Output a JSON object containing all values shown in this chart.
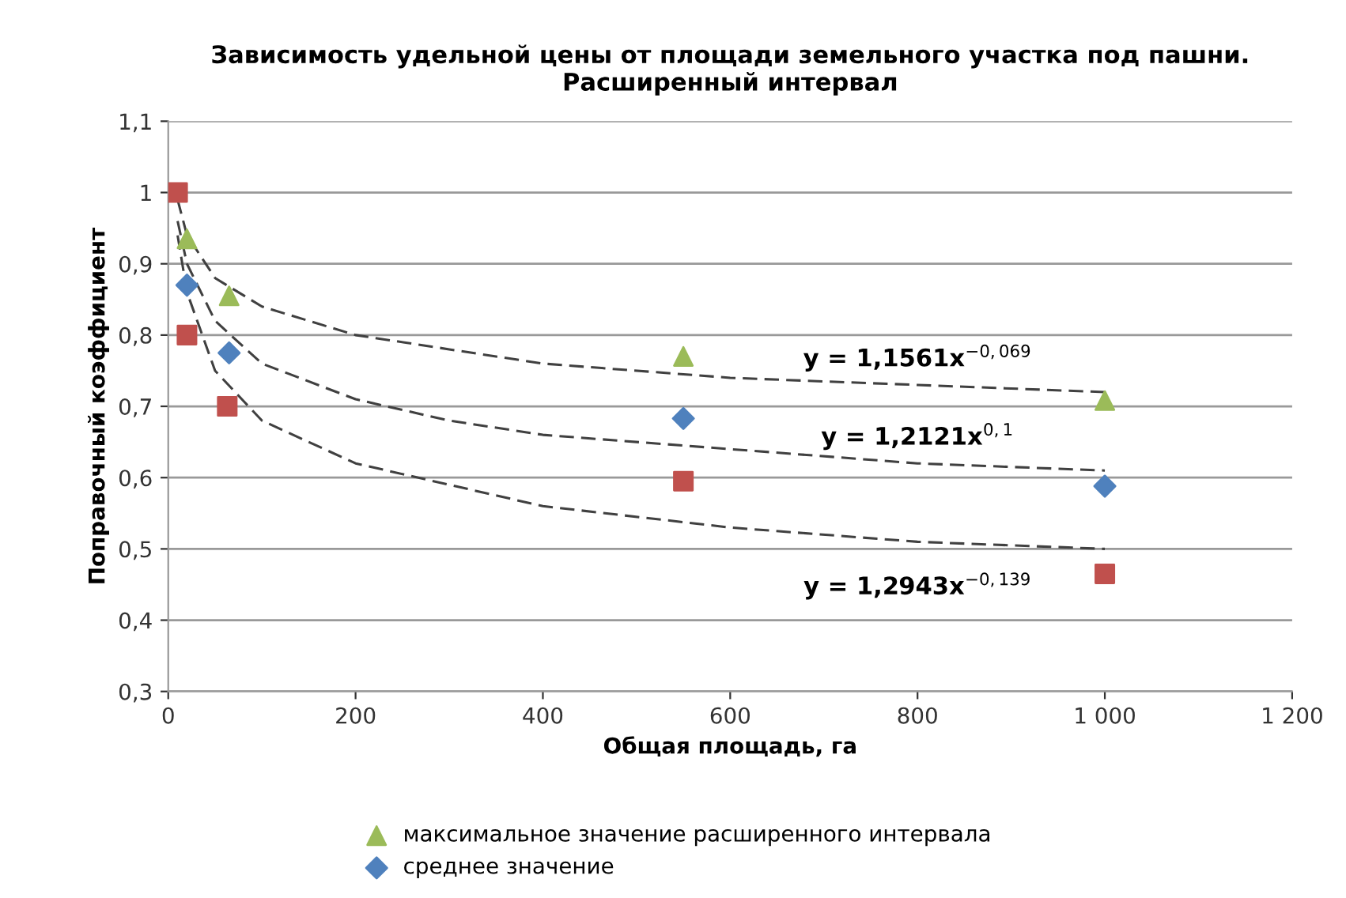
{
  "chart_data": {
    "type": "scatter",
    "title": "Зависимость удельной цены от площади земельного участка под пашни.\nРасширенный интервал",
    "xlabel": "Общая площадь, га",
    "ylabel": "Поправочный коэффициент",
    "xlim": [
      0,
      1200
    ],
    "xticks": [
      0,
      200,
      400,
      600,
      800,
      {
        "value": 1000,
        "label": "1 000"
      },
      {
        "value": 1200,
        "label": "1 200"
      }
    ],
    "ylim": [
      0.3,
      1.1
    ],
    "yticks": [
      {
        "value": 0.3,
        "label": "0,3"
      },
      {
        "value": 0.4,
        "label": "0,4"
      },
      {
        "value": 0.5,
        "label": "0,5"
      },
      {
        "value": 0.6,
        "label": "0,6"
      },
      {
        "value": 0.7,
        "label": "0,7"
      },
      {
        "value": 0.8,
        "label": "0,8"
      },
      {
        "value": 0.9,
        "label": "0,9"
      },
      1,
      {
        "value": 1.1,
        "label": "1,1"
      }
    ],
    "grid": "y",
    "legend": "bottom",
    "series": [
      {
        "name": "максимальное значение расширенного интервала",
        "color": "#9bbb59",
        "marker": "triangle",
        "x": [
          20,
          65,
          550,
          1000
        ],
        "values": [
          0.935,
          0.855,
          0.77,
          0.708
        ]
      },
      {
        "name": "среднее значение",
        "color": "#4f81bd",
        "marker": "diamond",
        "x": [
          20,
          65,
          550,
          1000
        ],
        "values": [
          0.87,
          0.775,
          0.683,
          0.588
        ]
      },
      {
        "color": "#c0504d",
        "marker": "square",
        "x": [
          10,
          20,
          63,
          550,
          1000
        ],
        "values": [
          1.0,
          0.8,
          0.7,
          0.595,
          0.465
        ]
      },
      {
        "type": "line",
        "color": "#404040",
        "line_style": "dashed",
        "marker": "none",
        "x": [
          10,
          20,
          50,
          100,
          200,
          300,
          400,
          600,
          800,
          1000
        ],
        "values": [
          0.99,
          0.94,
          0.88,
          0.84,
          0.8,
          0.78,
          0.76,
          0.74,
          0.73,
          0.72
        ]
      },
      {
        "type": "line",
        "color": "#404040",
        "line_style": "dashed",
        "marker": "none",
        "x": [
          10,
          20,
          50,
          100,
          200,
          300,
          400,
          600,
          800,
          1000
        ],
        "values": [
          0.96,
          0.9,
          0.82,
          0.76,
          0.71,
          0.68,
          0.66,
          0.64,
          0.62,
          0.61
        ]
      },
      {
        "type": "line",
        "color": "#404040",
        "line_style": "dashed",
        "marker": "none",
        "x": [
          10,
          20,
          50,
          100,
          200,
          300,
          400,
          600,
          800,
          1000
        ],
        "values": [
          0.94,
          0.86,
          0.75,
          0.68,
          0.62,
          0.59,
          0.56,
          0.53,
          0.51,
          0.5
        ]
      }
    ],
    "annotations": [
      "y = 1,1561x$^{−0,069}$",
      "y = 1,2121x$^{0,1}$",
      "y = 1,2943x$^{−0,139}$"
    ]
  }
}
